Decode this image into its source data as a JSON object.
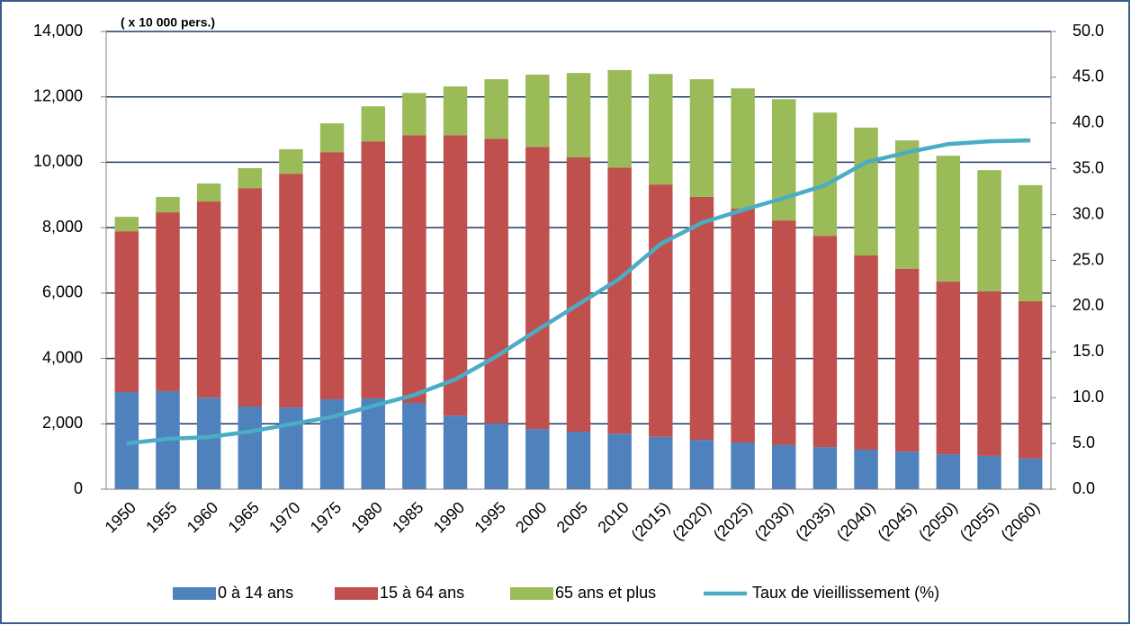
{
  "chart_data": {
    "type": "stacked_bar_line",
    "annotation": "( x 10 000 pers.)",
    "categories": [
      "1950",
      "1955",
      "1960",
      "1965",
      "1970",
      "1975",
      "1980",
      "1985",
      "1990",
      "1995",
      "2000",
      "2005",
      "2010",
      "(2015)",
      "(2020)",
      "(2025)",
      "(2030)",
      "(2035)",
      "(2040)",
      "(2045)",
      "(2050)",
      "(2055)",
      "(2060)"
    ],
    "series": [
      {
        "name": "0 à 14 ans",
        "color": "#4f81bd",
        "values": [
          2970,
          3000,
          2800,
          2530,
          2500,
          2750,
          2780,
          2640,
          2250,
          2010,
          1840,
          1760,
          1700,
          1600,
          1510,
          1430,
          1350,
          1290,
          1210,
          1150,
          1070,
          1020,
          940
        ]
      },
      {
        "name": "15 à 64 ans",
        "color": "#c0504d",
        "values": [
          4920,
          5470,
          6000,
          6680,
          7150,
          7560,
          7860,
          8190,
          8580,
          8710,
          8630,
          8390,
          8140,
          7720,
          7430,
          7150,
          6870,
          6460,
          5940,
          5590,
          5280,
          5030,
          4810
        ]
      },
      {
        "name": "65 ans et plus",
        "color": "#9bbb59",
        "values": [
          440,
          470,
          550,
          610,
          750,
          880,
          1070,
          1290,
          1490,
          1820,
          2210,
          2580,
          2980,
          3380,
          3600,
          3680,
          3710,
          3770,
          3910,
          3930,
          3850,
          3710,
          3550
        ]
      },
      {
        "name": "Taux de vieillissement (%)",
        "color": "#4bacc6",
        "axis": "y2",
        "type": "line",
        "values": [
          5.0,
          5.5,
          5.7,
          6.3,
          7.1,
          7.9,
          9.1,
          10.3,
          12.0,
          14.5,
          17.4,
          20.2,
          23.0,
          26.8,
          29.1,
          30.5,
          31.8,
          33.2,
          35.7,
          36.8,
          37.7,
          38.0,
          38.1
        ]
      }
    ],
    "ylim": [
      0,
      14000
    ],
    "yticks": [
      0,
      {
        "value": 2000,
        "label": "2,000"
      },
      {
        "value": 4000,
        "label": "4,000"
      },
      {
        "value": 6000,
        "label": "6,000"
      },
      {
        "value": 8000,
        "label": "8,000"
      },
      {
        "value": 10000,
        "label": "10,000"
      },
      {
        "value": 12000,
        "label": "12,000"
      },
      {
        "value": 14000,
        "label": "14,000"
      }
    ],
    "y2lim": [
      0,
      50
    ],
    "y2ticks": [
      {
        "value": 0,
        "label": "0.0"
      },
      {
        "value": 5,
        "label": "5.0"
      },
      {
        "value": 10,
        "label": "10.0"
      },
      {
        "value": 15,
        "label": "15.0"
      },
      {
        "value": 20,
        "label": "20.0"
      },
      {
        "value": 25,
        "label": "25.0"
      },
      {
        "value": 30,
        "label": "30.0"
      },
      {
        "value": 35,
        "label": "35.0"
      },
      {
        "value": 40,
        "label": "40.0"
      },
      {
        "value": 45,
        "label": "45.0"
      },
      {
        "value": 50,
        "label": "50.0"
      }
    ],
    "grid": true,
    "legend": "bottom"
  }
}
